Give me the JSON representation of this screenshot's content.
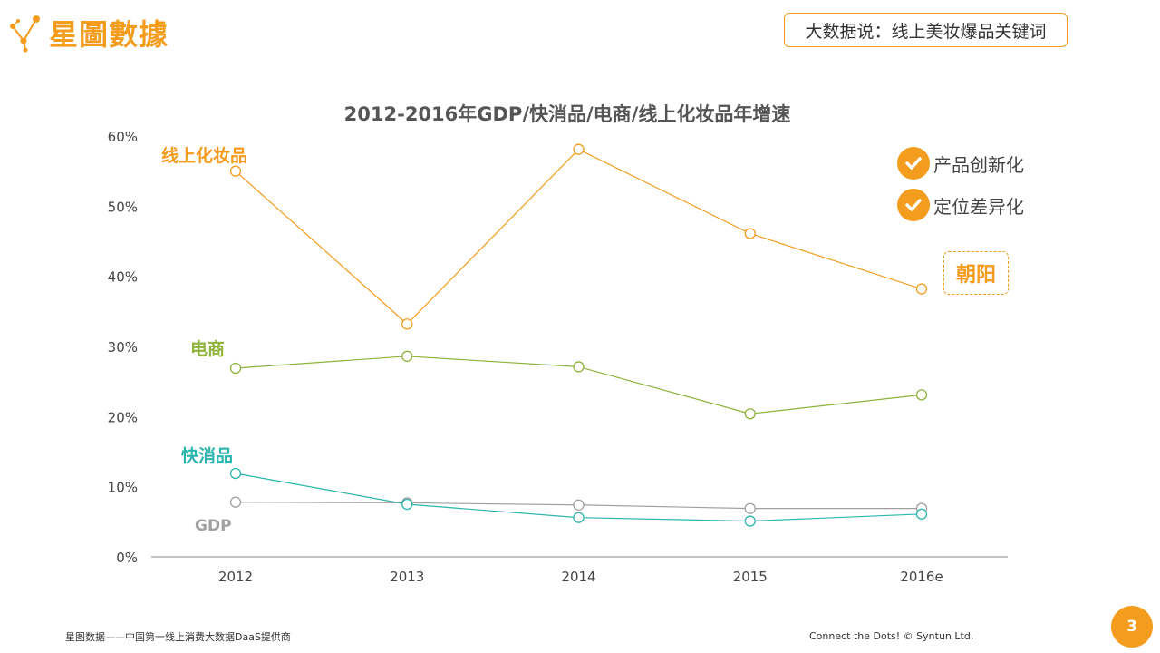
{
  "brand": {
    "name": "星圖數據",
    "accent": "#f39c1d"
  },
  "topic": "大数据说：线上美妆爆品关键词",
  "legend": [
    {
      "label": "产品创新化",
      "icon": "check-circle-icon"
    },
    {
      "label": "定位差异化",
      "icon": "check-circle-icon"
    }
  ],
  "callout": "朝阳",
  "footer": {
    "left": "星图数据——中国第一线上消费大数据DaaS提供商",
    "right": "Connect the Dots!  © Syntun Ltd.",
    "page": "3"
  },
  "chart_data": {
    "type": "line",
    "title": "2012-2016年GDP/快消品/电商/线上化妆品年增速",
    "categories": [
      "2012",
      "2013",
      "2014",
      "2015",
      "2016e"
    ],
    "ylim": [
      0,
      60
    ],
    "yticks": [
      "0%",
      "10%",
      "20%",
      "30%",
      "40%",
      "50%",
      "60%"
    ],
    "grid": false,
    "series": [
      {
        "name": "线上化妆品",
        "color": "#f39c1d",
        "values": [
          55,
          33.2,
          58.1,
          46.1,
          38.2
        ]
      },
      {
        "name": "电商",
        "color": "#8db33a",
        "values": [
          26.9,
          28.6,
          27.1,
          20.4,
          23.1
        ]
      },
      {
        "name": "快消品",
        "color": "#2bb5ac",
        "values": [
          11.9,
          7.5,
          5.6,
          5.1,
          6.1
        ]
      },
      {
        "name": "GDP",
        "color": "#a0a0a0",
        "values": [
          7.8,
          7.7,
          7.4,
          6.9,
          6.9
        ]
      }
    ]
  }
}
